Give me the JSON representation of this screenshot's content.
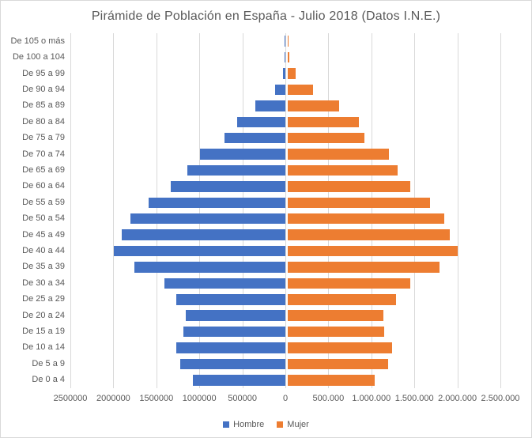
{
  "title": "Pirámide de Población en España - Julio 2018 (Datos I.N.E.)",
  "legend": {
    "hombre_label": "Hombre",
    "mujer_label": "Mujer"
  },
  "colors": {
    "hombre": "#4472C4",
    "mujer": "#ED7D31",
    "gridline": "#D9D9D9",
    "text": "#595959"
  },
  "chart_data": {
    "type": "bar",
    "orientation": "horizontal-pyramid",
    "title": "Pirámide de Población en España - Julio 2018 (Datos I.N.E.)",
    "categories": [
      "De 105 o más",
      "De 100 a 104",
      "De 95 a 99",
      "De 90 a 94",
      "De 85 a 89",
      "De 80 a 84",
      "De 75 a 79",
      "De 70 a 74",
      "De 65 a 69",
      "De 60 a 64",
      "De 55 a 59",
      "De 50 a 54",
      "De 45 a 49",
      "De 40 a 44",
      "De 35 a 39",
      "De 30 a 34",
      "De 25 a 29",
      "De 20 a 24",
      "De 15 a 19",
      "De 10 a 14",
      "De 5 a 9",
      "De 0 a 4"
    ],
    "series": [
      {
        "name": "Hombre",
        "side": "left",
        "color": "#4472C4",
        "values": [
          500,
          4000,
          25000,
          120000,
          352000,
          560000,
          705000,
          990000,
          1139000,
          1330000,
          1590000,
          1798000,
          1896000,
          1995000,
          1750000,
          1400000,
          1268000,
          1160000,
          1181000,
          1270000,
          1221000,
          1070000
        ]
      },
      {
        "name": "Mujer",
        "side": "right",
        "color": "#ED7D31",
        "values": [
          2000,
          14000,
          88000,
          295000,
          600000,
          830000,
          893000,
          1172000,
          1271000,
          1420000,
          1650000,
          1814000,
          1879000,
          1968000,
          1762000,
          1418000,
          1255000,
          1111000,
          1117000,
          1209000,
          1169000,
          1010000
        ]
      }
    ],
    "xlim": [
      -2500000,
      2500000
    ],
    "xtick_interval": 500000,
    "xticklabels": [
      "2500000",
      "2000000",
      "1500000",
      "1000000",
      "500000",
      "0",
      "500.000",
      "1.000.000",
      "1.500.000",
      "2.000.000",
      "2.500.000"
    ],
    "grid": true,
    "legend_position": "bottom"
  }
}
